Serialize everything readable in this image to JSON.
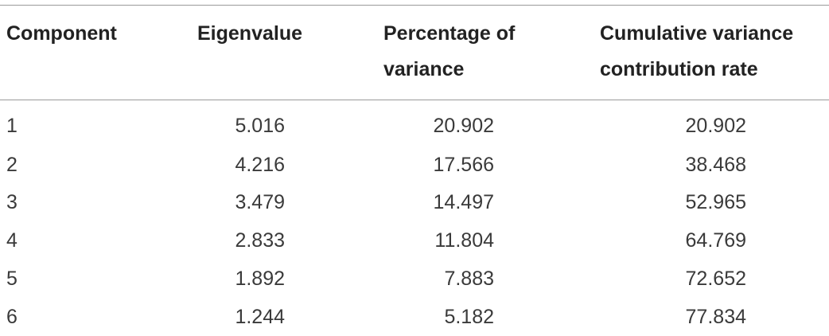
{
  "table": {
    "header": [
      "Component",
      "Eigenvalue",
      "Percentage of variance",
      "Cumulative variance contribution rate"
    ],
    "rows": [
      [
        "1",
        5.016,
        20.902,
        20.902
      ],
      [
        "2",
        4.216,
        17.566,
        38.468
      ],
      [
        "3",
        3.479,
        14.497,
        52.965
      ],
      [
        "4",
        2.833,
        11.804,
        64.769
      ],
      [
        "5",
        1.892,
        7.883,
        72.652
      ],
      [
        "6",
        1.244,
        5.182,
        77.834
      ]
    ]
  }
}
